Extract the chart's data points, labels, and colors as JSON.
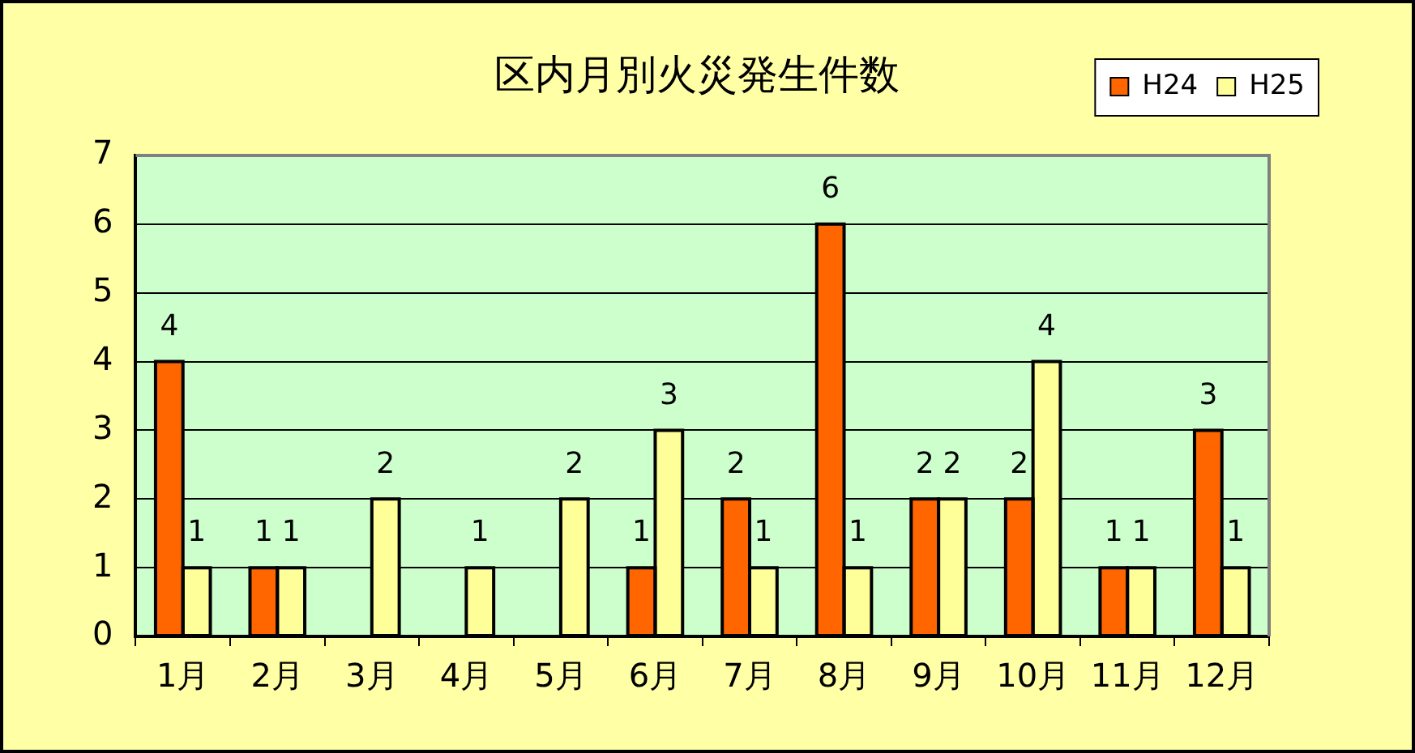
{
  "chart_data": {
    "type": "bar",
    "title": "区内月別火災発生件数",
    "categories": [
      "1月",
      "2月",
      "3月",
      "4月",
      "5月",
      "6月",
      "7月",
      "8月",
      "9月",
      "10月",
      "11月",
      "12月"
    ],
    "series": [
      {
        "name": "H24",
        "color": "#ff6600",
        "values": [
          4,
          1,
          0,
          0,
          0,
          1,
          2,
          6,
          2,
          2,
          1,
          3
        ],
        "value_labels": [
          "4",
          "1",
          null,
          null,
          null,
          "1",
          "2",
          "6",
          "2",
          "2",
          "1",
          "3"
        ]
      },
      {
        "name": "H25",
        "color": "#ffff99",
        "values": [
          1,
          1,
          2,
          1,
          2,
          3,
          1,
          1,
          2,
          4,
          1,
          1
        ],
        "value_labels": [
          "1",
          "1",
          "2",
          "1",
          "2",
          "3",
          "1",
          "1",
          "2",
          "4",
          "1",
          "1"
        ]
      }
    ],
    "ylim": [
      0,
      7
    ],
    "yticks": [
      0,
      1,
      2,
      3,
      4,
      5,
      6,
      7
    ],
    "grid": "y",
    "legend": "top right"
  }
}
